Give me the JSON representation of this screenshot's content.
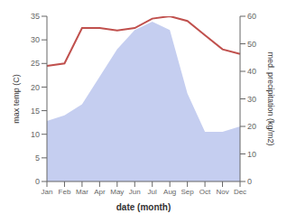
{
  "chart_data": {
    "type": "line",
    "categories": [
      "Jan",
      "Feb",
      "Mar",
      "Apr",
      "May",
      "Jun",
      "Jul",
      "Aug",
      "Sep",
      "Oct",
      "Nov",
      "Dec"
    ],
    "series": [
      {
        "type": "area",
        "color": "#c5cef0",
        "axis": "y2",
        "values": [
          22,
          24,
          28,
          38,
          48,
          55,
          58,
          55,
          32,
          18,
          18,
          20
        ]
      },
      {
        "type": "line",
        "color": "#c0504d",
        "values": [
          24.5,
          25.0,
          32.5,
          32.5,
          32.0,
          32.5,
          34.5,
          35.0,
          34.0,
          31.0,
          28.0,
          27.0
        ]
      }
    ],
    "xlabel": "date (month)",
    "ylabel": "max temp (C)",
    "y2label": "med. precipitation (kg/m2)",
    "ylim": [
      0,
      35
    ],
    "yticks": [
      0,
      5,
      10,
      15,
      20,
      25,
      30,
      35
    ],
    "y2lim": [
      0,
      60
    ],
    "y2ticks": [
      0,
      10,
      20,
      30,
      40,
      50,
      60
    ],
    "grid": false
  }
}
